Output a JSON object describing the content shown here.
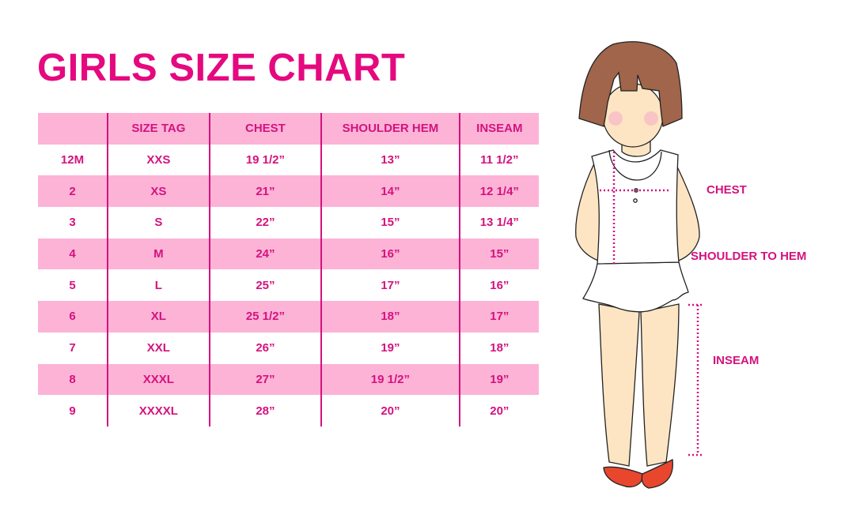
{
  "title": "GIRLS SIZE CHART",
  "table": {
    "headers": [
      "",
      "SIZE TAG",
      "CHEST",
      "SHOULDER HEM",
      "INSEAM"
    ],
    "rows": [
      [
        "12M",
        "XXS",
        "19 1/2”",
        "13”",
        "11 1/2”"
      ],
      [
        "2",
        "XS",
        "21”",
        "14”",
        "12 1/4”"
      ],
      [
        "3",
        "S",
        "22”",
        "15”",
        "13 1/4”"
      ],
      [
        "4",
        "M",
        "24”",
        "16”",
        "15”"
      ],
      [
        "5",
        "L",
        "25”",
        "17”",
        "16”"
      ],
      [
        "6",
        "XL",
        "25 1/2”",
        "18”",
        "17”"
      ],
      [
        "7",
        "XXL",
        "26”",
        "19”",
        "18”"
      ],
      [
        "8",
        "XXXL",
        "27”",
        "19 1/2”",
        "19”"
      ],
      [
        "9",
        "XXXXL",
        "28”",
        "20”",
        "20”"
      ]
    ]
  },
  "figure": {
    "labels": {
      "chest": "CHEST",
      "shoulder_to_hem": "SHOULDER TO HEM",
      "inseam": "INSEAM"
    }
  },
  "colors": {
    "accent": "#e5097f",
    "row_pink": "#fcb3d6",
    "hair": "#a0654a",
    "skin": "#fde5c3",
    "shoes": "#e8472e"
  }
}
